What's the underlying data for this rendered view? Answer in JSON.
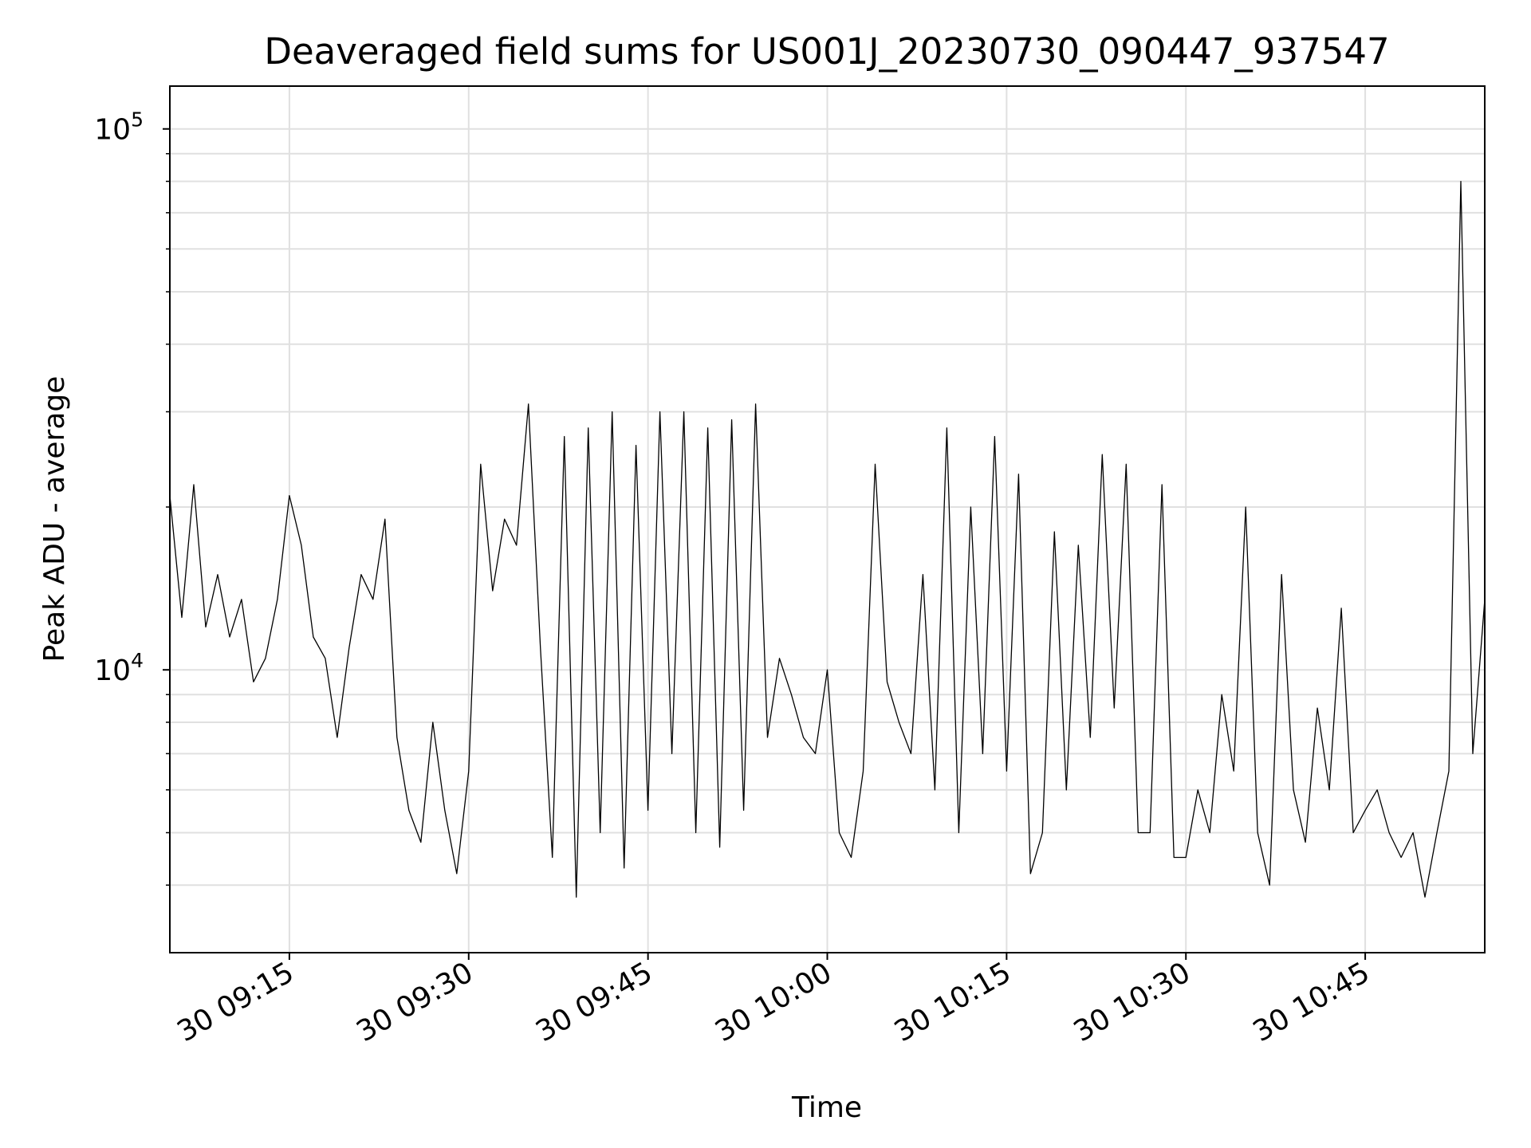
{
  "chart_data": {
    "type": "line",
    "title": "Deaveraged field sums for US001J_20230730_090447_937547",
    "xlabel": "Time",
    "ylabel": "Peak ADU - average",
    "yscale": "log",
    "ylim": [
      3000,
      120000
    ],
    "xlim": [
      "2023-07-30 09:05",
      "2023-07-30 10:55"
    ],
    "grid": true,
    "line_color": "#000000",
    "grid_color": "#e0e0e0",
    "x_ticks": [
      {
        "value": "2023-07-30 09:15",
        "label": "30 09:15"
      },
      {
        "value": "2023-07-30 09:30",
        "label": "30 09:30"
      },
      {
        "value": "2023-07-30 09:45",
        "label": "30 09:45"
      },
      {
        "value": "2023-07-30 10:00",
        "label": "30 10:00"
      },
      {
        "value": "2023-07-30 10:15",
        "label": "30 10:15"
      },
      {
        "value": "2023-07-30 10:30",
        "label": "30 10:30"
      },
      {
        "value": "2023-07-30 10:45",
        "label": "30 10:45"
      }
    ],
    "y_major_ticks": [
      {
        "value": 10000,
        "base": "10",
        "exp": "4"
      },
      {
        "value": 100000,
        "base": "10",
        "exp": "5"
      }
    ],
    "series": [
      {
        "x": [
          "2023-07-30 09:05",
          "2023-07-30 09:06",
          "2023-07-30 09:07",
          "2023-07-30 09:08",
          "2023-07-30 09:09",
          "2023-07-30 09:10",
          "2023-07-30 09:11",
          "2023-07-30 09:12",
          "2023-07-30 09:13",
          "2023-07-30 09:14",
          "2023-07-30 09:15",
          "2023-07-30 09:16",
          "2023-07-30 09:17",
          "2023-07-30 09:18",
          "2023-07-30 09:19",
          "2023-07-30 09:20",
          "2023-07-30 09:21",
          "2023-07-30 09:22",
          "2023-07-30 09:23",
          "2023-07-30 09:24",
          "2023-07-30 09:25",
          "2023-07-30 09:26",
          "2023-07-30 09:27",
          "2023-07-30 09:28",
          "2023-07-30 09:29",
          "2023-07-30 09:30",
          "2023-07-30 09:31",
          "2023-07-30 09:32",
          "2023-07-30 09:33",
          "2023-07-30 09:34",
          "2023-07-30 09:35",
          "2023-07-30 09:36",
          "2023-07-30 09:37",
          "2023-07-30 09:38",
          "2023-07-30 09:39",
          "2023-07-30 09:40",
          "2023-07-30 09:41",
          "2023-07-30 09:42",
          "2023-07-30 09:43",
          "2023-07-30 09:44",
          "2023-07-30 09:45",
          "2023-07-30 09:46",
          "2023-07-30 09:47",
          "2023-07-30 09:48",
          "2023-07-30 09:49",
          "2023-07-30 09:50",
          "2023-07-30 09:51",
          "2023-07-30 09:52",
          "2023-07-30 09:53",
          "2023-07-30 09:54",
          "2023-07-30 09:55",
          "2023-07-30 09:56",
          "2023-07-30 09:57",
          "2023-07-30 09:58",
          "2023-07-30 09:59",
          "2023-07-30 10:00",
          "2023-07-30 10:01",
          "2023-07-30 10:02",
          "2023-07-30 10:03",
          "2023-07-30 10:04",
          "2023-07-30 10:05",
          "2023-07-30 10:06",
          "2023-07-30 10:07",
          "2023-07-30 10:08",
          "2023-07-30 10:09",
          "2023-07-30 10:10",
          "2023-07-30 10:11",
          "2023-07-30 10:12",
          "2023-07-30 10:13",
          "2023-07-30 10:14",
          "2023-07-30 10:15",
          "2023-07-30 10:16",
          "2023-07-30 10:17",
          "2023-07-30 10:18",
          "2023-07-30 10:19",
          "2023-07-30 10:20",
          "2023-07-30 10:21",
          "2023-07-30 10:22",
          "2023-07-30 10:23",
          "2023-07-30 10:24",
          "2023-07-30 10:25",
          "2023-07-30 10:26",
          "2023-07-30 10:27",
          "2023-07-30 10:28",
          "2023-07-30 10:29",
          "2023-07-30 10:30",
          "2023-07-30 10:31",
          "2023-07-30 10:32",
          "2023-07-30 10:33",
          "2023-07-30 10:34",
          "2023-07-30 10:35",
          "2023-07-30 10:36",
          "2023-07-30 10:37",
          "2023-07-30 10:38",
          "2023-07-30 10:39",
          "2023-07-30 10:40",
          "2023-07-30 10:41",
          "2023-07-30 10:42",
          "2023-07-30 10:43",
          "2023-07-30 10:44",
          "2023-07-30 10:45",
          "2023-07-30 10:46",
          "2023-07-30 10:47",
          "2023-07-30 10:48",
          "2023-07-30 10:49",
          "2023-07-30 10:50",
          "2023-07-30 10:51",
          "2023-07-30 10:52",
          "2023-07-30 10:53",
          "2023-07-30 10:54",
          "2023-07-30 10:55"
        ],
        "y": [
          21000,
          12500,
          22000,
          12000,
          15000,
          11500,
          13500,
          9500,
          10500,
          13500,
          21000,
          17000,
          11500,
          10500,
          7500,
          11000,
          15000,
          13500,
          19000,
          7500,
          5500,
          4800,
          8000,
          5500,
          4200,
          6500,
          24000,
          14000,
          19000,
          17000,
          31000,
          11000,
          4500,
          27000,
          3800,
          28000,
          5000,
          30000,
          4300,
          26000,
          5500,
          30000,
          7000,
          30000,
          5000,
          28000,
          4700,
          29000,
          5500,
          31000,
          7500,
          10500,
          9000,
          7500,
          7000,
          10000,
          5000,
          4500,
          6500,
          24000,
          9500,
          8000,
          7000,
          15000,
          6000,
          28000,
          5000,
          20000,
          7000,
          27000,
          6500,
          23000,
          4200,
          5000,
          18000,
          6000,
          17000,
          7500,
          25000,
          8500,
          24000,
          5000,
          5000,
          22000,
          4500,
          4500,
          6000,
          5000,
          9000,
          6500,
          20000,
          5000,
          4000,
          15000,
          6000,
          4800,
          8500,
          6000,
          13000,
          5000,
          5500,
          6000,
          5000,
          4500,
          5000,
          3800,
          5000,
          6500,
          80000,
          7000,
          13500
        ]
      }
    ]
  }
}
